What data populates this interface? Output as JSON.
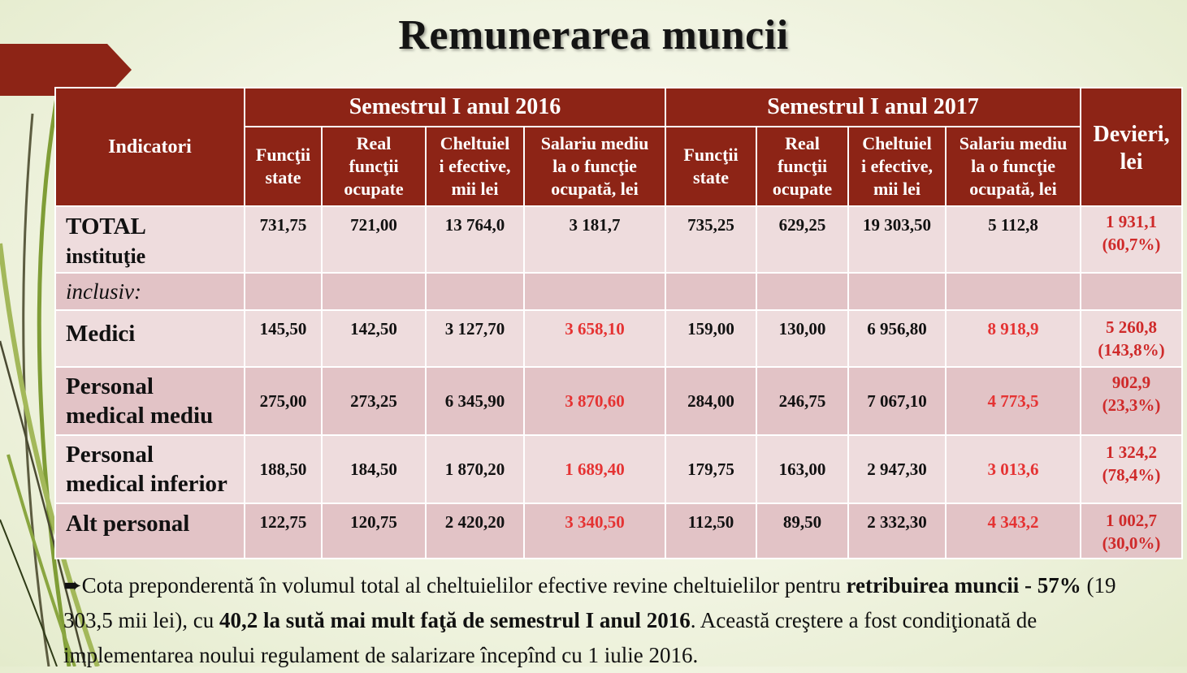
{
  "title": "Remunerarea muncii",
  "table": {
    "indicator_header": "Indicatori",
    "group_2016": "Semestrul I anul 2016",
    "group_2017": "Semestrul I anul 2017",
    "deviation_header_1": "Devieri,",
    "deviation_header_2": "lei",
    "sub_headers": {
      "c1": [
        "Funcţii",
        "state"
      ],
      "c2": [
        "Real",
        "funcţii",
        "ocupate"
      ],
      "c3": [
        "Cheltuiel",
        "i efective,",
        "mii lei"
      ],
      "c4": [
        "Salariu mediu",
        "la o funcţie",
        "ocupată, lei"
      ]
    },
    "rows": [
      {
        "label": [
          "TOTAL",
          "instituţie"
        ],
        "v2016": [
          "731,75",
          "721,00",
          "13 764,0",
          "3 181,7"
        ],
        "v2017": [
          "735,25",
          "629,25",
          "19 303,50",
          "5 112,8"
        ],
        "dev": [
          "1 931,1",
          "(60,7%)"
        ]
      },
      {
        "label": [
          "inclusiv:"
        ],
        "v2016": [
          "",
          "",
          "",
          ""
        ],
        "v2017": [
          "",
          "",
          "",
          ""
        ],
        "dev": [
          "",
          ""
        ]
      },
      {
        "label": [
          "Medici"
        ],
        "v2016": [
          "145,50",
          "142,50",
          "3 127,70",
          "3 658,10"
        ],
        "v2017": [
          "159,00",
          "130,00",
          "6 956,80",
          "8 918,9"
        ],
        "dev": [
          "5 260,8",
          "(143,8%)"
        ]
      },
      {
        "label": [
          "Personal",
          "medical mediu"
        ],
        "v2016": [
          "275,00",
          "273,25",
          "6 345,90",
          "3 870,60"
        ],
        "v2017": [
          "284,00",
          "246,75",
          "7 067,10",
          "4 773,5"
        ],
        "dev": [
          "902,9",
          "(23,3%)"
        ]
      },
      {
        "label": [
          "Personal",
          "medical inferior"
        ],
        "v2016": [
          "188,50",
          "184,50",
          "1 870,20",
          "1 689,40"
        ],
        "v2017": [
          "179,75",
          "163,00",
          "2 947,30",
          "3 013,6"
        ],
        "dev": [
          "1 324,2",
          "(78,4%)"
        ]
      },
      {
        "label": [
          "Alt personal"
        ],
        "v2016": [
          "122,75",
          "120,75",
          "2 420,20",
          "3 340,50"
        ],
        "v2017": [
          "112,50",
          "89,50",
          "2 332,30",
          "4 343,2"
        ],
        "dev": [
          "1 002,7",
          "(30,0%)"
        ]
      }
    ]
  },
  "footer": {
    "bullet": "➨",
    "t1": "Cota preponderentă în volumul total al cheltuielilor efective revine cheltuielilor pentru ",
    "b1": "retribuirea muncii  - 57%",
    "t2": "  (19 303,5 mii lei), cu ",
    "b2": "40,2 la sută mai mult faţă de semestrul I anul 2016",
    "t3": ". Această creştere a fost condiţionată de implementarea noului regulament de salarizare începînd cu 1 iulie 2016."
  },
  "colors": {
    "header_red": "#8d2416",
    "row_light": "#eedcdd",
    "row_dark": "#e2c3c6",
    "highlight_red": "#e53333",
    "stem_green": "#7f9d36"
  }
}
